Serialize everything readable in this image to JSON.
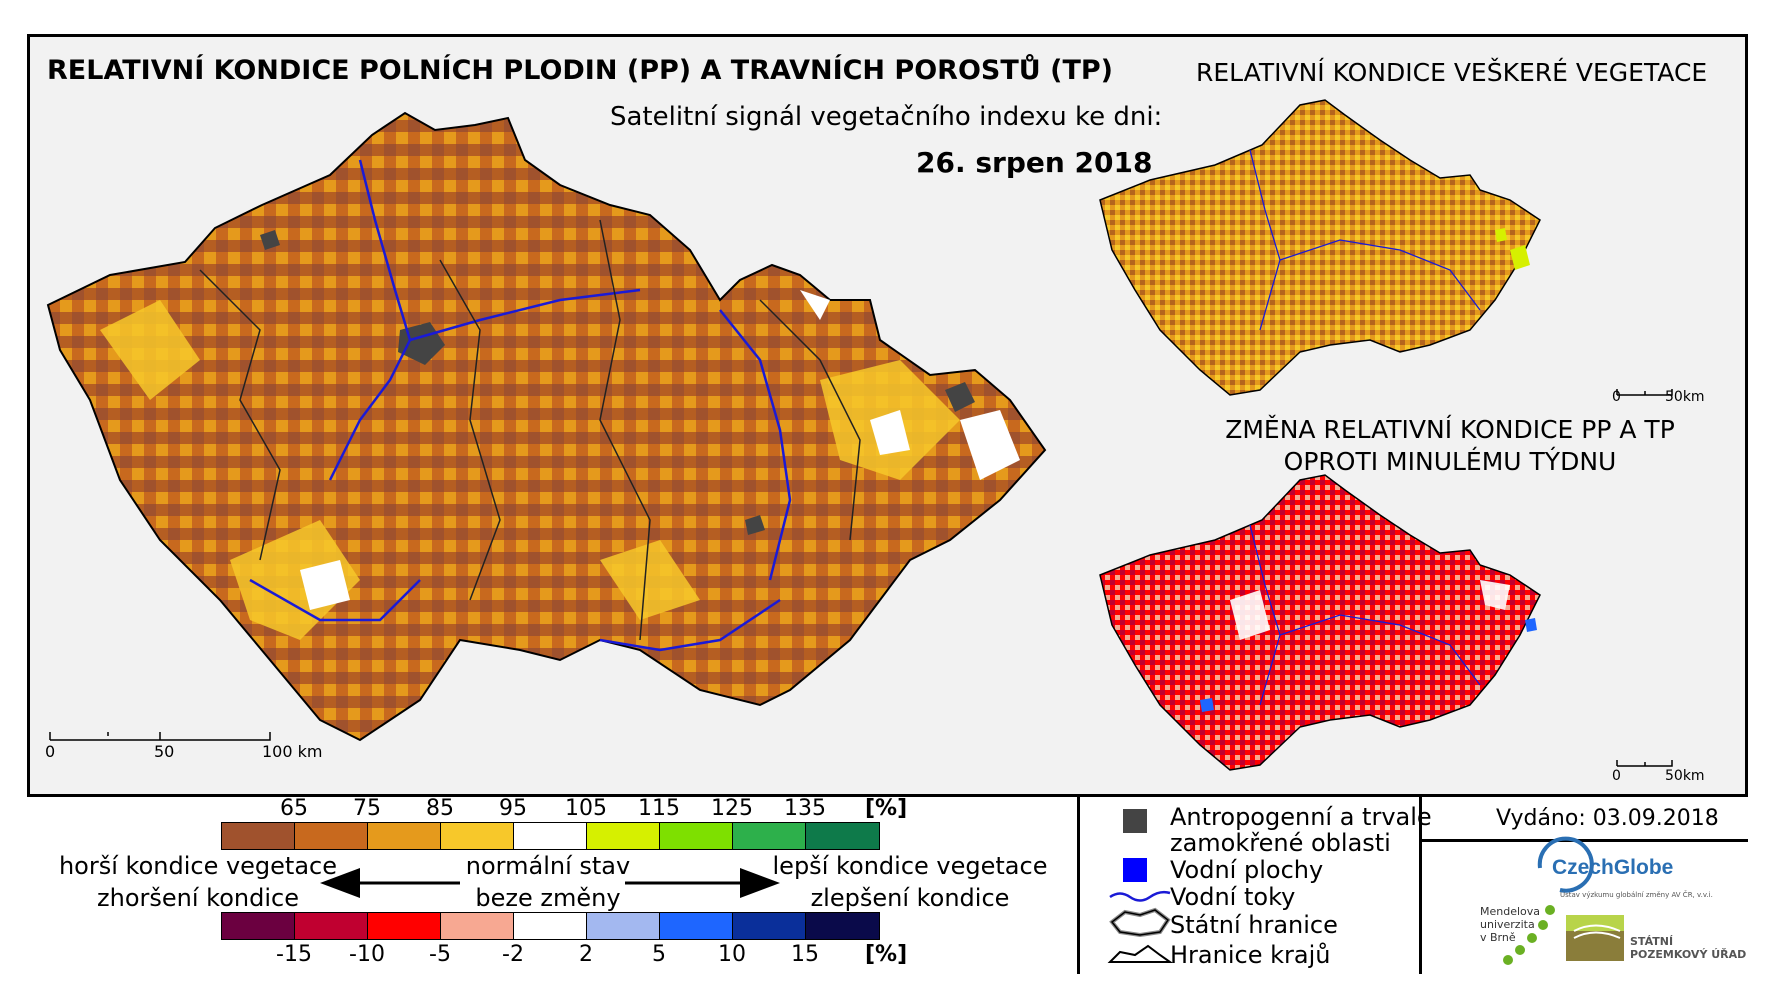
{
  "titles": {
    "main": "RELATIVNÍ KONDICE POLNÍCH PLODIN (PP) A TRAVNÍCH POROSTŮ (TP)",
    "subtitle": "Satelitní signál vegetačního indexu ke dni:",
    "date": "26. srpen 2018",
    "side_top": "RELATIVNÍ KONDICE VEŠKERÉ VEGETACE",
    "side_bottom_line1": "ZMĚNA RELATIVNÍ KONDICE PP A TP",
    "side_bottom_line2": "OPROTI MINULÉMU TÝDNU"
  },
  "scale_bars": {
    "main": {
      "labels": [
        "0",
        "50",
        "100 km"
      ]
    },
    "small_top": {
      "labels": [
        "0",
        "50km"
      ]
    },
    "small_bottom": {
      "labels": [
        "0",
        "50km"
      ]
    }
  },
  "legend": {
    "condition": {
      "ticks": [
        "65",
        "75",
        "85",
        "95",
        "105",
        "115",
        "125",
        "135"
      ],
      "unit": "[%]",
      "colors": [
        "#a0522d",
        "#c8691e",
        "#e59a1c",
        "#f7c82a",
        "#ffffff",
        "#d6f000",
        "#7ee000",
        "#2db04b",
        "#0e7a4a"
      ]
    },
    "change": {
      "ticks": [
        "-15",
        "-10",
        "-5",
        "-2",
        "2",
        "5",
        "10",
        "15"
      ],
      "unit": "[%]",
      "colors": [
        "#6b0040",
        "#c00030",
        "#ff0000",
        "#f7a892",
        "#ffffff",
        "#a3b8f0",
        "#1e66ff",
        "#0a2f9a",
        "#0a0a4a"
      ]
    },
    "labels": {
      "worse_condition": "horší kondice vegetace",
      "worsening": "zhoršení kondice",
      "normal_state": "normální stav",
      "no_change": "beze změny",
      "better_condition": "lepší kondice vegetace",
      "improvement": "zlepšení kondice"
    },
    "symbols": {
      "anthropogenic_line1": "Antropogenní a trvale",
      "anthropogenic_line2": "zamokřené oblasti",
      "water_areas": "Vodní plochy",
      "water_streams": "Vodní toky",
      "state_border": "Státní hranice",
      "region_border": "Hranice krajů"
    },
    "symbol_colors": {
      "anthropogenic": "#444444",
      "water_area": "#0000ff",
      "water_stream": "#1a1ad6"
    }
  },
  "issued": "Vydáno: 03.09.2018",
  "logos": {
    "czechglobe": "CzechGlobe",
    "czechglobe_sub": "Ústav výzkumu globální změny AV ČR, v.v.i.",
    "mendel_line1": "Mendelova",
    "mendel_line2": "univerzita",
    "mendel_line3": "v Brně",
    "spu_line1": "STÁTNÍ",
    "spu_line2": "POZEMKOVÝ ÚŘAD"
  }
}
